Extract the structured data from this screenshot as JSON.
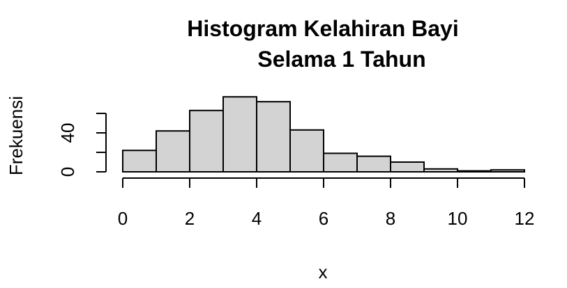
{
  "chart_data": {
    "type": "bar",
    "title_lines": [
      "Histogram Kelahiran Bayi",
      "Selama 1 Tahun"
    ],
    "xlabel": "x",
    "ylabel": "Frekuensi",
    "bin_edges": [
      0,
      1,
      2,
      3,
      4,
      5,
      6,
      7,
      8,
      9,
      10,
      11,
      12
    ],
    "values": [
      22,
      42,
      63,
      77,
      72,
      43,
      19,
      16,
      10,
      3,
      1,
      2
    ],
    "x_ticks": [
      0,
      2,
      4,
      6,
      8,
      10,
      12
    ],
    "y_ticks": [
      0,
      40
    ],
    "xlim": [
      0,
      12
    ],
    "ylim": [
      0,
      80
    ],
    "bar_fill": "#d3d3d3",
    "grid": false,
    "legend": "none"
  }
}
